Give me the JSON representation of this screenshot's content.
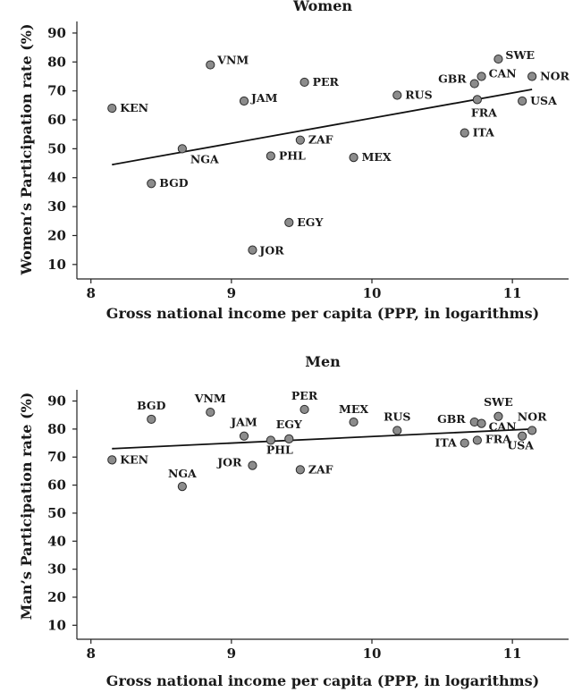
{
  "chart_data": [
    {
      "type": "scatter",
      "title": "Women",
      "xlabel": "Gross national income per capita (PPP, in logarithms)",
      "ylabel": "Women’s Participation rate (%)",
      "xlim": [
        7.9,
        11.4
      ],
      "ylim": [
        5,
        94
      ],
      "xticks": [
        8,
        9,
        10,
        11
      ],
      "yticks": [
        10,
        20,
        30,
        40,
        50,
        60,
        70,
        80,
        90
      ],
      "grid": false,
      "points": [
        {
          "label": "KEN",
          "x": 8.15,
          "y": 64
        },
        {
          "label": "BGD",
          "x": 8.43,
          "y": 38
        },
        {
          "label": "NGA",
          "x": 8.65,
          "y": 50
        },
        {
          "label": "VNM",
          "x": 8.85,
          "y": 79
        },
        {
          "label": "JAM",
          "x": 9.09,
          "y": 66.5
        },
        {
          "label": "JOR",
          "x": 9.15,
          "y": 15
        },
        {
          "label": "PHL",
          "x": 9.28,
          "y": 47.5
        },
        {
          "label": "EGY",
          "x": 9.41,
          "y": 24.5
        },
        {
          "label": "ZAF",
          "x": 9.49,
          "y": 53
        },
        {
          "label": "PER",
          "x": 9.52,
          "y": 73
        },
        {
          "label": "MEX",
          "x": 9.87,
          "y": 47
        },
        {
          "label": "RUS",
          "x": 10.18,
          "y": 68.5
        },
        {
          "label": "ITA",
          "x": 10.66,
          "y": 55.5
        },
        {
          "label": "GBR",
          "x": 10.73,
          "y": 72.5
        },
        {
          "label": "FRA",
          "x": 10.75,
          "y": 67
        },
        {
          "label": "CAN",
          "x": 10.78,
          "y": 75
        },
        {
          "label": "SWE",
          "x": 10.9,
          "y": 81
        },
        {
          "label": "USA",
          "x": 11.07,
          "y": 66.5
        },
        {
          "label": "NOR",
          "x": 11.14,
          "y": 75
        }
      ],
      "fit_line": {
        "x": [
          8.15,
          11.14
        ],
        "y": [
          44.5,
          70.5
        ]
      }
    },
    {
      "type": "scatter",
      "title": "Men",
      "xlabel": "Gross national income per capita (PPP, in logarithms)",
      "ylabel": "Man’s Participation rate (%)",
      "xlim": [
        7.9,
        11.4
      ],
      "ylim": [
        5,
        94
      ],
      "xticks": [
        8,
        9,
        10,
        11
      ],
      "yticks": [
        10,
        20,
        30,
        40,
        50,
        60,
        70,
        80,
        90
      ],
      "grid": false,
      "points": [
        {
          "label": "KEN",
          "x": 8.15,
          "y": 69
        },
        {
          "label": "BGD",
          "x": 8.43,
          "y": 83.5
        },
        {
          "label": "NGA",
          "x": 8.65,
          "y": 59.5
        },
        {
          "label": "VNM",
          "x": 8.85,
          "y": 86
        },
        {
          "label": "JAM",
          "x": 9.09,
          "y": 77.5
        },
        {
          "label": "JOR",
          "x": 9.15,
          "y": 67
        },
        {
          "label": "PHL",
          "x": 9.28,
          "y": 76
        },
        {
          "label": "EGY",
          "x": 9.41,
          "y": 76.5
        },
        {
          "label": "ZAF",
          "x": 9.49,
          "y": 65.5
        },
        {
          "label": "PER",
          "x": 9.52,
          "y": 87
        },
        {
          "label": "MEX",
          "x": 9.87,
          "y": 82.5
        },
        {
          "label": "RUS",
          "x": 10.18,
          "y": 79.5
        },
        {
          "label": "ITA",
          "x": 10.66,
          "y": 75
        },
        {
          "label": "GBR",
          "x": 10.73,
          "y": 82.5
        },
        {
          "label": "FRA",
          "x": 10.75,
          "y": 76
        },
        {
          "label": "CAN",
          "x": 10.78,
          "y": 82
        },
        {
          "label": "SWE",
          "x": 10.9,
          "y": 84.5
        },
        {
          "label": "USA",
          "x": 11.07,
          "y": 77.5
        },
        {
          "label": "NOR",
          "x": 11.14,
          "y": 79.5
        }
      ],
      "fit_line": {
        "x": [
          8.15,
          11.14
        ],
        "y": [
          73,
          80
        ]
      }
    }
  ]
}
